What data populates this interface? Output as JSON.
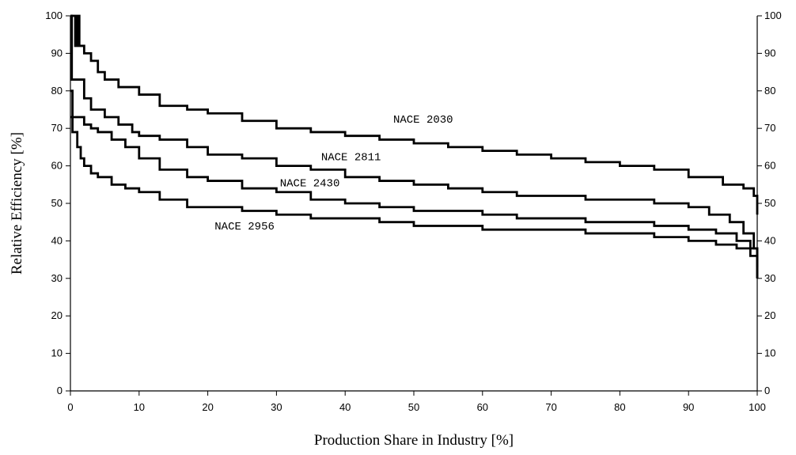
{
  "chart_data": {
    "type": "line",
    "xlabel": "Production Share in Industry [%]",
    "ylabel": "Relative Efficiency [%]",
    "xlim": [
      0,
      100
    ],
    "ylim": [
      0,
      100
    ],
    "x_ticks": [
      0,
      10,
      20,
      30,
      40,
      50,
      60,
      70,
      80,
      90,
      100
    ],
    "y_ticks": [
      0,
      10,
      20,
      30,
      40,
      50,
      60,
      70,
      80,
      90,
      100
    ],
    "secondary_y_axis": true,
    "grid": false,
    "series": [
      {
        "name": "NACE 2030",
        "points": [
          [
            0,
            100
          ],
          [
            0.5,
            100
          ],
          [
            0.7,
            92
          ],
          [
            1,
            100
          ],
          [
            1.3,
            92
          ],
          [
            2,
            90
          ],
          [
            3,
            88
          ],
          [
            4,
            85
          ],
          [
            5,
            83
          ],
          [
            7,
            81
          ],
          [
            10,
            79
          ],
          [
            13,
            76
          ],
          [
            17,
            75
          ],
          [
            20,
            74
          ],
          [
            25,
            72
          ],
          [
            30,
            70
          ],
          [
            35,
            69
          ],
          [
            40,
            68
          ],
          [
            45,
            67
          ],
          [
            50,
            66
          ],
          [
            55,
            65
          ],
          [
            60,
            64
          ],
          [
            65,
            63
          ],
          [
            70,
            62
          ],
          [
            75,
            61
          ],
          [
            80,
            60
          ],
          [
            85,
            59
          ],
          [
            90,
            57
          ],
          [
            95,
            55
          ],
          [
            98,
            54
          ],
          [
            99.5,
            52
          ],
          [
            100,
            47
          ]
        ]
      },
      {
        "name": "NACE 2811",
        "points": [
          [
            0,
            100
          ],
          [
            0.2,
            83
          ],
          [
            1,
            83
          ],
          [
            2,
            78
          ],
          [
            3,
            75
          ],
          [
            5,
            73
          ],
          [
            7,
            71
          ],
          [
            9,
            69
          ],
          [
            10,
            68
          ],
          [
            13,
            67
          ],
          [
            17,
            65
          ],
          [
            20,
            63
          ],
          [
            25,
            62
          ],
          [
            30,
            60
          ],
          [
            35,
            59
          ],
          [
            40,
            57
          ],
          [
            45,
            56
          ],
          [
            50,
            55
          ],
          [
            55,
            54
          ],
          [
            60,
            53
          ],
          [
            65,
            52
          ],
          [
            70,
            52
          ],
          [
            75,
            51
          ],
          [
            80,
            51
          ],
          [
            85,
            50
          ],
          [
            90,
            49
          ],
          [
            93,
            47
          ],
          [
            96,
            45
          ],
          [
            98,
            42
          ],
          [
            99.5,
            38
          ],
          [
            100,
            33
          ]
        ]
      },
      {
        "name": "NACE 2430",
        "points": [
          [
            0,
            80
          ],
          [
            0.3,
            73
          ],
          [
            1,
            73
          ],
          [
            2,
            71
          ],
          [
            3,
            70
          ],
          [
            4,
            69
          ],
          [
            6,
            67
          ],
          [
            8,
            65
          ],
          [
            10,
            62
          ],
          [
            13,
            59
          ],
          [
            17,
            57
          ],
          [
            20,
            56
          ],
          [
            25,
            54
          ],
          [
            30,
            53
          ],
          [
            35,
            51
          ],
          [
            40,
            50
          ],
          [
            45,
            49
          ],
          [
            50,
            48
          ],
          [
            55,
            48
          ],
          [
            60,
            47
          ],
          [
            65,
            46
          ],
          [
            70,
            46
          ],
          [
            75,
            45
          ],
          [
            80,
            45
          ],
          [
            85,
            44
          ],
          [
            90,
            43
          ],
          [
            94,
            42
          ],
          [
            97,
            40
          ],
          [
            99,
            38
          ],
          [
            100,
            30
          ]
        ]
      },
      {
        "name": "NACE 2956",
        "points": [
          [
            0,
            73
          ],
          [
            0.3,
            69
          ],
          [
            1,
            65
          ],
          [
            1.5,
            62
          ],
          [
            2,
            60
          ],
          [
            3,
            58
          ],
          [
            4,
            57
          ],
          [
            6,
            55
          ],
          [
            8,
            54
          ],
          [
            10,
            53
          ],
          [
            13,
            51
          ],
          [
            17,
            49
          ],
          [
            20,
            49
          ],
          [
            25,
            48
          ],
          [
            30,
            47
          ],
          [
            35,
            46
          ],
          [
            40,
            46
          ],
          [
            45,
            45
          ],
          [
            50,
            44
          ],
          [
            55,
            44
          ],
          [
            60,
            43
          ],
          [
            65,
            43
          ],
          [
            70,
            43
          ],
          [
            75,
            42
          ],
          [
            80,
            42
          ],
          [
            85,
            41
          ],
          [
            90,
            40
          ],
          [
            94,
            39
          ],
          [
            97,
            38
          ],
          [
            99,
            36
          ],
          [
            100,
            30
          ]
        ]
      }
    ]
  }
}
